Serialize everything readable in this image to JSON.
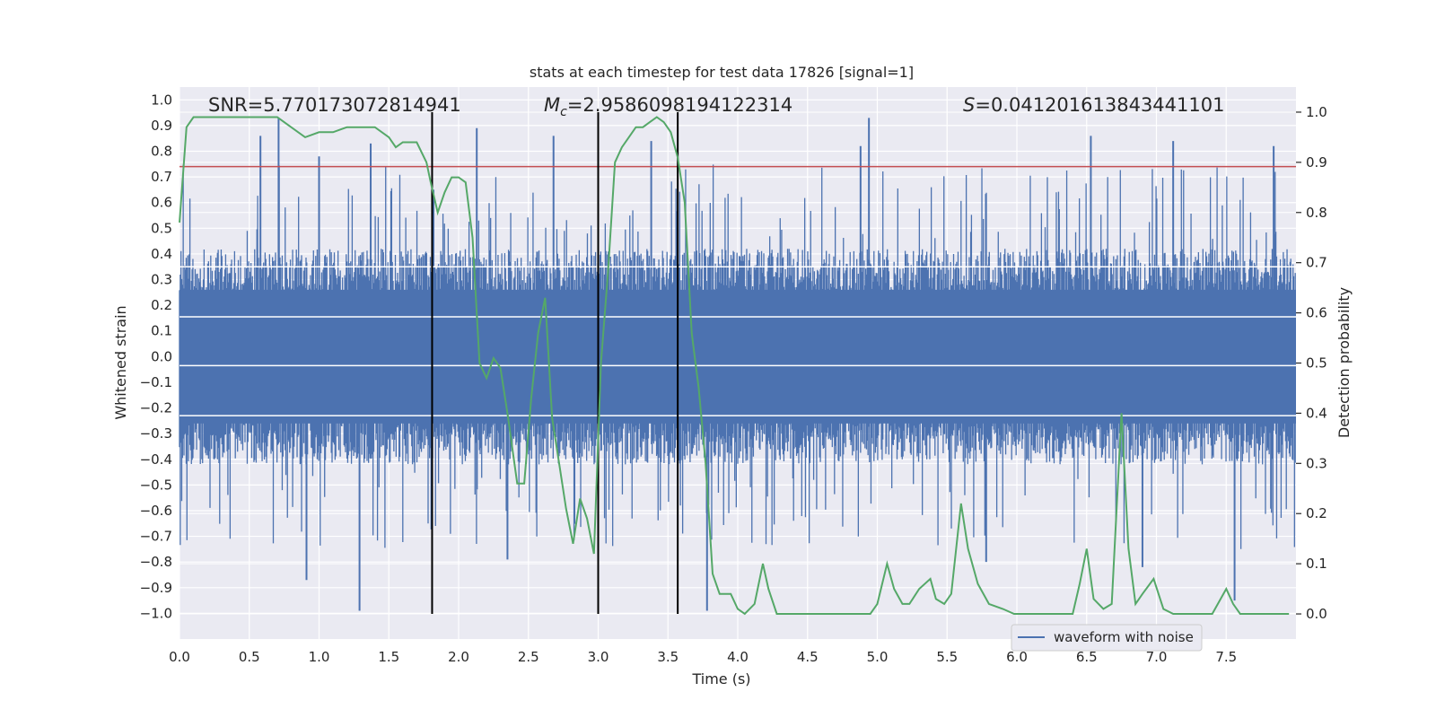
{
  "chart_data": {
    "type": "line",
    "title": "stats at each timestep for test data 17826 [signal=1]",
    "xlabel": "Time (s)",
    "ylabel": "Whitened strain",
    "y2label": "Detection probability",
    "xlim": [
      0.0,
      8.0
    ],
    "ylim": [
      -1.1,
      1.05
    ],
    "y2lim": [
      -0.05,
      1.05
    ],
    "xticks": [
      0.0,
      0.5,
      1.0,
      1.5,
      2.0,
      2.5,
      3.0,
      3.5,
      4.0,
      4.5,
      5.0,
      5.5,
      6.0,
      6.5,
      7.0,
      7.5
    ],
    "xtick_labels": [
      "0.0",
      "0.5",
      "1.0",
      "1.5",
      "2.0",
      "2.5",
      "3.0",
      "3.5",
      "4.0",
      "4.5",
      "5.0",
      "5.5",
      "6.0",
      "6.5",
      "7.0",
      "7.5"
    ],
    "yticks": [
      1.0,
      0.9,
      0.8,
      0.7,
      0.6,
      0.5,
      0.4,
      0.3,
      0.2,
      0.1,
      0.0,
      -0.1,
      -0.2,
      -0.3,
      -0.4,
      -0.5,
      -0.6,
      -0.7,
      -0.8,
      -0.9,
      -1.0
    ],
    "ytick_labels": [
      "1.0",
      "0.9",
      "0.8",
      "0.7",
      "0.6",
      "0.5",
      "0.4",
      "0.3",
      "0.2",
      "0.1",
      "0.0",
      "−0.1",
      "−0.2",
      "−0.3",
      "−0.4",
      "−0.5",
      "−0.6",
      "−0.7",
      "−0.8",
      "−0.9",
      "−1.0"
    ],
    "y2ticks": [
      1.0,
      0.9,
      0.8,
      0.7,
      0.6,
      0.5,
      0.4,
      0.3,
      0.2,
      0.1,
      0.0
    ],
    "y2tick_labels": [
      "1.0",
      "0.9",
      "0.8",
      "0.7",
      "0.6",
      "0.5",
      "0.4",
      "0.3",
      "0.2",
      "0.1",
      "0.0"
    ],
    "annotations": {
      "snr_label": "SNR=5.770173072814941",
      "mc_symbol": "M",
      "mc_subscript": "c",
      "mc_value": "=2.9586098194122314",
      "s_symbol": "S",
      "s_value": "=0.041201613843441101"
    },
    "legend": {
      "label": "waveform with noise",
      "location": "lower-right"
    },
    "waveform": {
      "name": "waveform with noise",
      "description": "dense noisy whitened strain, bulk within about ±0.45 with spikes reaching about ±1.0",
      "core_amplitude": 0.42,
      "peaks": [
        {
          "t": 0.58,
          "v": 0.86
        },
        {
          "t": 0.71,
          "v": 0.93
        },
        {
          "t": 1.29,
          "v": -0.99
        },
        {
          "t": 0.91,
          "v": -0.87
        },
        {
          "t": 1.82,
          "v": 0.65
        },
        {
          "t": 2.13,
          "v": 0.89
        },
        {
          "t": 2.35,
          "v": -0.79
        },
        {
          "t": 2.68,
          "v": 0.86
        },
        {
          "t": 3.38,
          "v": 0.84
        },
        {
          "t": 3.78,
          "v": -0.99
        },
        {
          "t": 4.94,
          "v": 0.93
        },
        {
          "t": 4.88,
          "v": 0.82
        },
        {
          "t": 6.53,
          "v": 0.86
        },
        {
          "t": 7.56,
          "v": -0.95
        },
        {
          "t": 7.84,
          "v": 0.82
        },
        {
          "t": 7.12,
          "v": 0.84
        },
        {
          "t": 5.78,
          "v": -0.8
        },
        {
          "t": 6.9,
          "v": -0.82
        },
        {
          "t": 1.0,
          "v": 0.78
        },
        {
          "t": 1.37,
          "v": 0.83
        }
      ]
    },
    "probability": {
      "name": "Detection probability",
      "color": "#55a868",
      "t": [
        0.0,
        0.05,
        0.1,
        0.2,
        0.4,
        0.6,
        0.7,
        0.75,
        0.8,
        0.9,
        1.0,
        1.1,
        1.2,
        1.3,
        1.4,
        1.5,
        1.55,
        1.6,
        1.65,
        1.7,
        1.77,
        1.8,
        1.85,
        1.9,
        1.95,
        2.0,
        2.05,
        2.1,
        2.15,
        2.2,
        2.25,
        2.3,
        2.35,
        2.42,
        2.47,
        2.52,
        2.57,
        2.62,
        2.67,
        2.72,
        2.77,
        2.82,
        2.87,
        2.92,
        2.97,
        3.02,
        3.07,
        3.12,
        3.17,
        3.22,
        3.27,
        3.32,
        3.37,
        3.42,
        3.47,
        3.52,
        3.57,
        3.62,
        3.67,
        3.72,
        3.77,
        3.82,
        3.87,
        3.95,
        4.0,
        4.05,
        4.12,
        4.18,
        4.22,
        4.28,
        4.35,
        4.4,
        4.5,
        4.6,
        4.75,
        4.95,
        5.0,
        5.07,
        5.12,
        5.18,
        5.23,
        5.3,
        5.38,
        5.42,
        5.48,
        5.53,
        5.6,
        5.65,
        5.72,
        5.8,
        5.9,
        5.98,
        6.05,
        6.2,
        6.4,
        6.45,
        6.5,
        6.55,
        6.62,
        6.68,
        6.75,
        6.8,
        6.85,
        6.9,
        6.98,
        7.05,
        7.12,
        7.2,
        7.3,
        7.4,
        7.5,
        7.55,
        7.6,
        7.7,
        7.8,
        7.95
      ],
      "v": [
        0.78,
        0.97,
        0.99,
        0.99,
        0.99,
        0.99,
        0.99,
        0.98,
        0.97,
        0.95,
        0.96,
        0.96,
        0.97,
        0.97,
        0.97,
        0.95,
        0.93,
        0.94,
        0.94,
        0.94,
        0.9,
        0.86,
        0.8,
        0.84,
        0.87,
        0.87,
        0.86,
        0.75,
        0.5,
        0.47,
        0.51,
        0.49,
        0.4,
        0.26,
        0.26,
        0.43,
        0.56,
        0.63,
        0.39,
        0.3,
        0.21,
        0.14,
        0.23,
        0.19,
        0.12,
        0.5,
        0.68,
        0.9,
        0.93,
        0.95,
        0.97,
        0.97,
        0.98,
        0.99,
        0.98,
        0.96,
        0.91,
        0.82,
        0.56,
        0.45,
        0.3,
        0.08,
        0.04,
        0.04,
        0.01,
        0.0,
        0.02,
        0.1,
        0.05,
        0.0,
        0.0,
        0.0,
        0.0,
        0.0,
        0.0,
        0.0,
        0.02,
        0.1,
        0.05,
        0.02,
        0.02,
        0.05,
        0.07,
        0.03,
        0.02,
        0.04,
        0.22,
        0.13,
        0.06,
        0.02,
        0.01,
        0.0,
        0.0,
        0.0,
        0.0,
        0.06,
        0.13,
        0.03,
        0.01,
        0.02,
        0.4,
        0.13,
        0.02,
        0.04,
        0.07,
        0.01,
        0.0,
        0.0,
        0.0,
        0.0,
        0.05,
        0.02,
        0.0,
        0.0,
        0.0,
        0.0
      ]
    },
    "threshold": {
      "value": 0.74,
      "axis": "left",
      "color": "#c44e52"
    },
    "vlines": [
      1.81,
      3.0,
      3.57
    ],
    "hlines_white": [
      0.35,
      0.155,
      -0.035,
      -0.23
    ],
    "colors": {
      "waveform": "#4c72b0",
      "background": "#eaeaf2",
      "grid": "#ffffff",
      "vline": "#000000"
    }
  }
}
